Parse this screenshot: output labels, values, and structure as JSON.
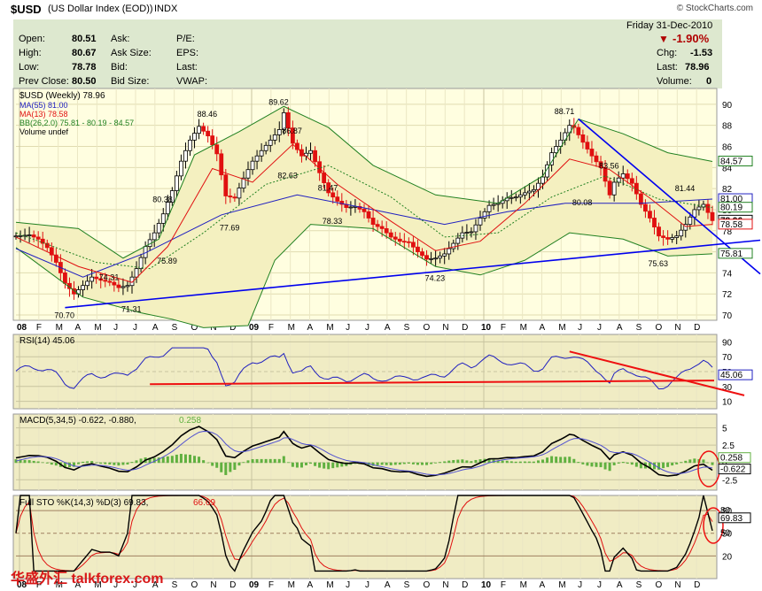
{
  "header": {
    "symbol": "$USD",
    "name": "(US Dollar Index (EOD))",
    "exchange": "INDX",
    "brand": "© StockCharts.com"
  },
  "quote": {
    "open_label": "Open:",
    "open": "80.51",
    "high_label": "High:",
    "high": "80.67",
    "low_label": "Low:",
    "low": "78.78",
    "prev_label": "Prev Close:",
    "prev": "80.50",
    "ask_label": "Ask:",
    "ask_size_label": "Ask Size:",
    "bid_label": "Bid:",
    "bid_size_label": "Bid Size:",
    "pe_label": "P/E:",
    "eps_label": "EPS:",
    "last_label": "Last:",
    "vwap_label": "VWAP:",
    "date": "Friday  31-Dec-2010",
    "change_pct": "-1.90%",
    "chg_label": "Chg:",
    "chg": "-1.53",
    "last2_label": "Last:",
    "last2": "78.96",
    "volume_label": "Volume:",
    "volume": "0"
  },
  "legend": {
    "main": "$USD (Weekly) 78.96",
    "ma55": "MA(55) 81.00",
    "ma13": "MA(13) 78.58",
    "bb": "BB(26,2.0) 75.81 - 80.19 - 84.57",
    "vol": "Volume undef",
    "rsi": "RSI(14) 45.06",
    "macd_a": "MACD(5,34,5) -0.622, -0.880,",
    "macd_b": "0.258",
    "sto_a": "Full STO %K(14,3) %D(3) 69.83,",
    "sto_b": "66.69"
  },
  "watermark": "华盛外汇 talkforex.com",
  "colors": {
    "price": "#000000",
    "up": "#000000",
    "down": "#e01010",
    "ma55": "#2020c0",
    "ma13": "#e01010",
    "bb": "#208020",
    "trend": "#0000ee",
    "rsi_line": "#2020c0",
    "rsi_trend": "#ee1010",
    "macd": "#000000",
    "signal": "#5050d0",
    "hist": "#60b040",
    "stoK": "#000000",
    "stoD": "#e01010",
    "panel_bg": "#fffee0",
    "panel_bg2": "#f0ecc4"
  },
  "chart_data": [
    {
      "type": "line",
      "title": "$USD (Weekly) 78.96",
      "x_ticks": [
        "08",
        "F",
        "M",
        "A",
        "M",
        "J",
        "J",
        "A",
        "S",
        "O",
        "N",
        "D",
        "09",
        "F",
        "M",
        "A",
        "M",
        "J",
        "J",
        "A",
        "S",
        "O",
        "N",
        "D",
        "10",
        "F",
        "M",
        "A",
        "M",
        "J",
        "J",
        "A",
        "S",
        "O",
        "N",
        "D"
      ],
      "y_ticks": [
        70,
        72,
        74,
        76,
        78,
        80,
        82,
        84,
        86,
        88,
        90
      ],
      "ylim": [
        69.5,
        91.5
      ],
      "price_path": [
        [
          0,
          77.5
        ],
        [
          3,
          77.6
        ],
        [
          5,
          77.2
        ],
        [
          7,
          76.4
        ],
        [
          9,
          75.0
        ],
        [
          11,
          73.0
        ],
        [
          13,
          72.0
        ],
        [
          15,
          72.8
        ],
        [
          17,
          73.6
        ],
        [
          19,
          73.3
        ],
        [
          21,
          73.1
        ],
        [
          23,
          72.6
        ],
        [
          25,
          72.8
        ],
        [
          27,
          74.4
        ],
        [
          29,
          76.5
        ],
        [
          31,
          77.8
        ],
        [
          33,
          79.6
        ],
        [
          35,
          81.8
        ],
        [
          37,
          84.6
        ],
        [
          39,
          86.6
        ],
        [
          41,
          87.9
        ],
        [
          43,
          87.0
        ],
        [
          45,
          85.3
        ],
        [
          47,
          81.3
        ],
        [
          49,
          81.1
        ],
        [
          51,
          83.0
        ],
        [
          53,
          84.6
        ],
        [
          55,
          85.6
        ],
        [
          57,
          86.6
        ],
        [
          59,
          87.6
        ],
        [
          60,
          89.2
        ],
        [
          62,
          86.3
        ],
        [
          64,
          85.1
        ],
        [
          66,
          85.6
        ],
        [
          68,
          83.5
        ],
        [
          70,
          81.6
        ],
        [
          72,
          80.8
        ],
        [
          74,
          80.2
        ],
        [
          76,
          80.3
        ],
        [
          78,
          79.8
        ],
        [
          80,
          78.6
        ],
        [
          82,
          78.2
        ],
        [
          84,
          77.4
        ],
        [
          86,
          77.0
        ],
        [
          88,
          76.9
        ],
        [
          90,
          76.0
        ],
        [
          92,
          75.3
        ],
        [
          94,
          75.4
        ],
        [
          96,
          75.8
        ],
        [
          98,
          76.8
        ],
        [
          100,
          77.8
        ],
        [
          102,
          77.9
        ],
        [
          104,
          79.2
        ],
        [
          106,
          80.4
        ],
        [
          108,
          80.6
        ],
        [
          110,
          81.1
        ],
        [
          112,
          81.2
        ],
        [
          114,
          81.6
        ],
        [
          116,
          81.9
        ],
        [
          118,
          83.1
        ],
        [
          120,
          85.4
        ],
        [
          122,
          86.6
        ],
        [
          124,
          88.0
        ],
        [
          125,
          87.8
        ],
        [
          127,
          86.4
        ],
        [
          129,
          85.1
        ],
        [
          131,
          84.0
        ],
        [
          133,
          81.4
        ],
        [
          134,
          82.6
        ],
        [
          136,
          83.4
        ],
        [
          138,
          82.5
        ],
        [
          140,
          80.5
        ],
        [
          142,
          79.2
        ],
        [
          144,
          77.5
        ],
        [
          146,
          77.2
        ],
        [
          148,
          77.5
        ],
        [
          150,
          78.6
        ],
        [
          152,
          80.0
        ],
        [
          154,
          80.5
        ],
        [
          156,
          78.96
        ]
      ],
      "ma55_path": [
        [
          0,
          76.3
        ],
        [
          15,
          73.6
        ],
        [
          29,
          75.9
        ],
        [
          46,
          79.5
        ],
        [
          63,
          81.4
        ],
        [
          80,
          80.0
        ],
        [
          96,
          78.6
        ],
        [
          110,
          79.8
        ],
        [
          123,
          80.6
        ],
        [
          140,
          80.6
        ],
        [
          156,
          81.0
        ]
      ],
      "ma13_path": [
        [
          0,
          77.4
        ],
        [
          14,
          74.6
        ],
        [
          26,
          73.1
        ],
        [
          34,
          76.5
        ],
        [
          44,
          83.9
        ],
        [
          53,
          82.6
        ],
        [
          62,
          86.2
        ],
        [
          72,
          82.4
        ],
        [
          84,
          78.9
        ],
        [
          94,
          76.1
        ],
        [
          104,
          77.0
        ],
        [
          114,
          80.6
        ],
        [
          124,
          84.8
        ],
        [
          133,
          83.8
        ],
        [
          142,
          81.1
        ],
        [
          150,
          78.4
        ],
        [
          156,
          78.6
        ]
      ],
      "bb_upper": [
        [
          0,
          78.8
        ],
        [
          14,
          78.2
        ],
        [
          24,
          75.4
        ],
        [
          32,
          77.2
        ],
        [
          40,
          85.2
        ],
        [
          50,
          87.4
        ],
        [
          60,
          89.8
        ],
        [
          70,
          87.8
        ],
        [
          80,
          84.2
        ],
        [
          94,
          81.4
        ],
        [
          108,
          80.6
        ],
        [
          118,
          83.2
        ],
        [
          126,
          88.6
        ],
        [
          136,
          87.2
        ],
        [
          146,
          85.4
        ],
        [
          156,
          84.57
        ]
      ],
      "bb_mid": [
        [
          0,
          77.8
        ],
        [
          18,
          75.0
        ],
        [
          30,
          74.4
        ],
        [
          42,
          77.8
        ],
        [
          56,
          82.4
        ],
        [
          70,
          84.2
        ],
        [
          84,
          81.2
        ],
        [
          96,
          77.4
        ],
        [
          108,
          77.8
        ],
        [
          120,
          81.2
        ],
        [
          132,
          83.2
        ],
        [
          144,
          81.0
        ],
        [
          156,
          80.19
        ]
      ],
      "bb_lower": [
        [
          0,
          76.4
        ],
        [
          15,
          71.7
        ],
        [
          28,
          70.2
        ],
        [
          35,
          69.6
        ],
        [
          42,
          68.8
        ],
        [
          52,
          69.0
        ],
        [
          58,
          75.2
        ],
        [
          66,
          78.6
        ],
        [
          80,
          78.2
        ],
        [
          94,
          74.6
        ],
        [
          104,
          73.8
        ],
        [
          114,
          75.2
        ],
        [
          124,
          77.8
        ],
        [
          136,
          77.2
        ],
        [
          146,
          75.6
        ],
        [
          156,
          75.81
        ]
      ],
      "trendlines": [
        {
          "from": [
            11,
            70.7
          ],
          "to": [
            168,
            77.1
          ]
        },
        {
          "from": [
            126,
            88.6
          ],
          "to": [
            168,
            73.9
          ]
        }
      ],
      "annotations": [
        {
          "x": 11,
          "y": 70.7,
          "label": "70.70"
        },
        {
          "x": 26,
          "y": 71.31,
          "label": "71.31"
        },
        {
          "x": 21,
          "y": 74.31,
          "label": "74.31"
        },
        {
          "x": 34,
          "y": 75.89,
          "label": "75.89"
        },
        {
          "x": 33,
          "y": 80.38,
          "label": "80.38"
        },
        {
          "x": 43,
          "y": 88.46,
          "label": "88.46"
        },
        {
          "x": 48,
          "y": 77.69,
          "label": "77.69"
        },
        {
          "x": 59,
          "y": 89.62,
          "label": "89.62"
        },
        {
          "x": 62,
          "y": 86.87,
          "label": "86.87"
        },
        {
          "x": 61,
          "y": 82.63,
          "label": "82.63"
        },
        {
          "x": 70,
          "y": 81.47,
          "label": "81.47"
        },
        {
          "x": 71,
          "y": 78.33,
          "label": "78.33"
        },
        {
          "x": 94,
          "y": 74.23,
          "label": "74.23"
        },
        {
          "x": 123,
          "y": 88.71,
          "label": "88.71"
        },
        {
          "x": 133,
          "y": 83.56,
          "label": "83.56"
        },
        {
          "x": 127,
          "y": 80.08,
          "label": "80.08"
        },
        {
          "x": 144,
          "y": 75.63,
          "label": "75.63"
        },
        {
          "x": 150,
          "y": 81.44,
          "label": "81.44"
        }
      ],
      "right_labels": [
        "84.57",
        "81.00",
        "80.19",
        "78.96",
        "78.58",
        "75.81"
      ]
    },
    {
      "type": "line",
      "title": "RSI(14) 45.06",
      "y_ticks": [
        10,
        30,
        50,
        70,
        90
      ],
      "ylim": [
        0,
        100
      ],
      "right_label": "45.06"
    },
    {
      "type": "line",
      "title": "MACD(5,34,5)",
      "y_ticks": [
        -2.5,
        0,
        2.5,
        5.0
      ],
      "right_labels": [
        "0.258",
        "-0.622"
      ]
    },
    {
      "type": "line",
      "title": "Full STO %K(14,3) %D(3)",
      "y_ticks": [
        20,
        50,
        80
      ],
      "right_labels": [
        "80",
        "69.83",
        "50"
      ]
    }
  ]
}
